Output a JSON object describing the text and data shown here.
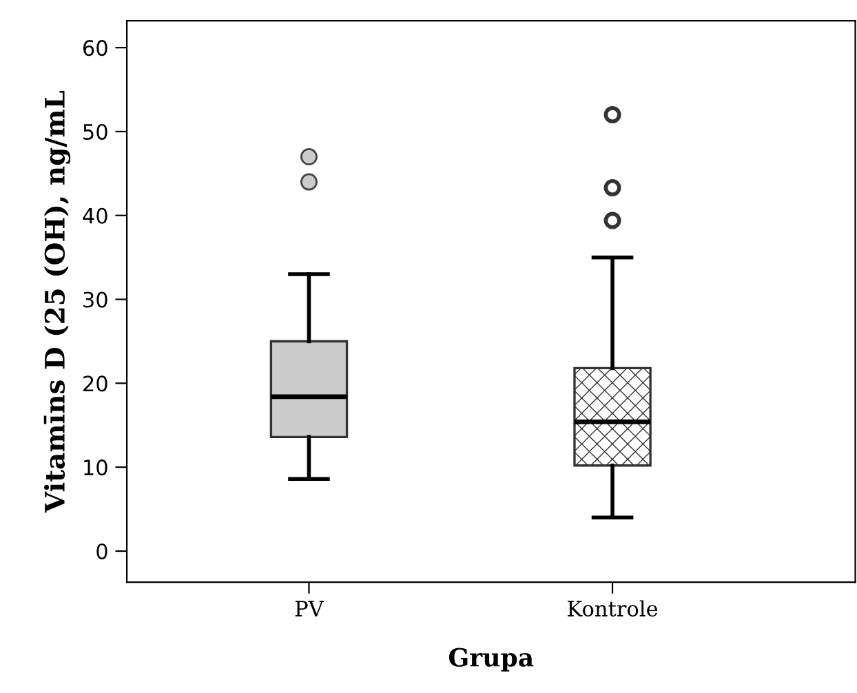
{
  "chart_data": {
    "type": "box",
    "xlabel": "Grupa",
    "ylabel": "Vitamīns D (25 (OH), ng/mL",
    "categories": [
      "PV",
      "Kontrole"
    ],
    "boxes": [
      {
        "low": 8.6,
        "q1": 13.6,
        "median": 18.4,
        "q3": 25,
        "high": 33,
        "outliers": [
          47,
          44
        ]
      },
      {
        "low": 4,
        "q1": 10.2,
        "median": 15.4,
        "q3": 21.8,
        "high": 35,
        "outliers": [
          52,
          43.3,
          39.4
        ]
      }
    ],
    "colors": [
      "#cccccc",
      "#333333"
    ],
    "ylim": [
      -3.7,
      63.2
    ],
    "yticks": [
      0,
      10,
      20,
      30,
      40,
      50,
      60
    ],
    "grid": false
  }
}
